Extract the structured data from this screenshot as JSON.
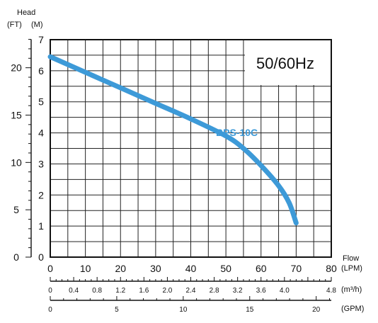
{
  "chart_data": {
    "type": "line",
    "frequency_label": "50/60Hz",
    "y_title": "Head",
    "y_unit_ft": "(FT)",
    "y_unit_m": "(M)",
    "x_title": "Flow",
    "x_unit_lpm": "(LPM)",
    "x_unit_m3h": "(m³/h)",
    "x_unit_gpm": "(GPM)",
    "xlim": [
      0,
      80
    ],
    "ylim": [
      0,
      7
    ],
    "y_ticks_m": [
      "0",
      "1",
      "2",
      "3",
      "4",
      "5",
      "6",
      "7"
    ],
    "y_ticks_ft": [
      "0",
      "5",
      "10",
      "15",
      "20"
    ],
    "x_ticks_lpm": [
      "0",
      "10",
      "20",
      "30",
      "40",
      "50",
      "60",
      "70",
      "80"
    ],
    "x_ticks_m3h": [
      "0",
      "0.4",
      "0.8",
      "1.2",
      "1.6",
      "2.0",
      "2.4",
      "2.8",
      "3.2",
      "3.6",
      "4.0",
      "4.8"
    ],
    "x_ticks_gpm": [
      "0",
      "5",
      "10",
      "15",
      "20"
    ],
    "grid": true,
    "series": [
      {
        "name": "BPS-10C",
        "color": "#3d9ad8",
        "x": [
          0,
          10,
          20,
          30,
          40,
          50,
          55,
          60,
          65,
          68,
          70
        ],
        "y": [
          6.45,
          5.95,
          5.45,
          4.95,
          4.45,
          3.9,
          3.5,
          2.95,
          2.3,
          1.75,
          1.1
        ]
      }
    ]
  }
}
